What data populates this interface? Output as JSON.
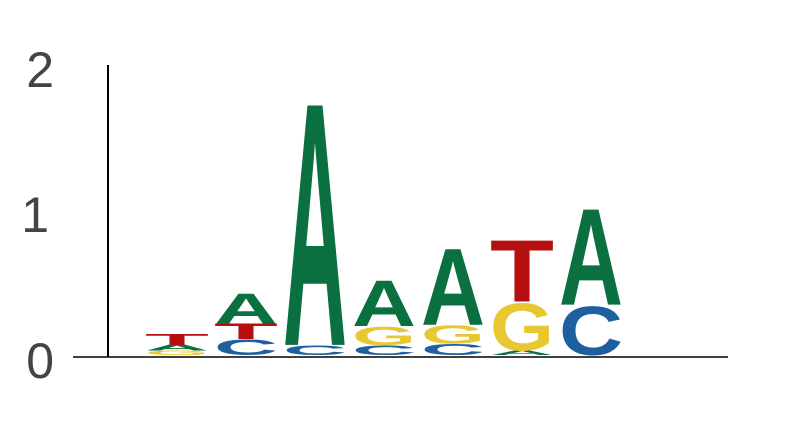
{
  "chart_data": {
    "type": "sequence-logo",
    "title": "",
    "xlabel": "",
    "ylabel": "",
    "ylim": [
      0,
      2
    ],
    "yticks": [
      "0",
      "1",
      "2"
    ],
    "grid": false,
    "letters": [
      "A",
      "C",
      "G",
      "T"
    ],
    "colors": {
      "A": "#0a7040",
      "C": "#1e5fa0",
      "G": "#e8c832",
      "T": "#b50f0f"
    },
    "positions": [
      {
        "stack": [
          {
            "letter": "G",
            "height": 0.03
          },
          {
            "letter": "A",
            "height": 0.04
          },
          {
            "letter": "T",
            "height": 0.08
          }
        ]
      },
      {
        "stack": [
          {
            "letter": "C",
            "height": 0.11
          },
          {
            "letter": "T",
            "height": 0.11
          },
          {
            "letter": "A",
            "height": 0.22
          }
        ]
      },
      {
        "stack": [
          {
            "letter": "C",
            "height": 0.07
          },
          {
            "letter": "A",
            "height": 1.74
          }
        ]
      },
      {
        "stack": [
          {
            "letter": "C",
            "height": 0.07
          },
          {
            "letter": "G",
            "height": 0.13
          },
          {
            "letter": "A",
            "height": 0.33
          }
        ]
      },
      {
        "stack": [
          {
            "letter": "C",
            "height": 0.08
          },
          {
            "letter": "G",
            "height": 0.13
          },
          {
            "letter": "A",
            "height": 0.55
          }
        ]
      },
      {
        "stack": [
          {
            "letter": "A",
            "height": 0.03
          },
          {
            "letter": "G",
            "height": 0.34
          },
          {
            "letter": "T",
            "height": 0.44
          }
        ]
      },
      {
        "stack": [
          {
            "letter": "C",
            "height": 0.35
          },
          {
            "letter": "A",
            "height": 0.69
          }
        ]
      }
    ]
  }
}
